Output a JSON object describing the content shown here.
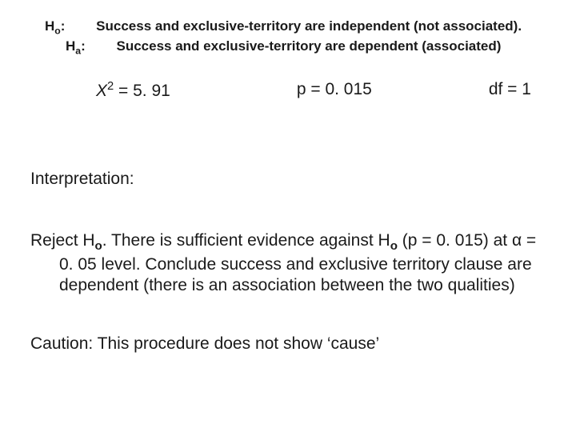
{
  "colors": {
    "background": "#ffffff",
    "text": "#1a1a1a"
  },
  "hypotheses": {
    "ho_label_html": "H<sub>o</sub>:",
    "ho_text": "Success and exclusive-territory are independent (not associated).",
    "ha_label_html": "H<sub>a</sub>:",
    "ha_text": "Success and exclusive-territory are dependent (associated)"
  },
  "stats": {
    "chi_html": "<span class='chi-sym'>X</span><sup>2</sup> = 5. 91",
    "p": "p = 0. 015",
    "df": "df = 1"
  },
  "interpretation": {
    "heading": "Interpretation:",
    "body_html": "Reject H<sub>o</sub>.  There is sufficient evidence against H<sub>o</sub> (p = 0. 015) at α = 0. 05 level.  Conclude success and exclusive territory clause are dependent (there is an association between the two qualities)"
  },
  "caution": "Caution:  This procedure does not show ‘cause’"
}
